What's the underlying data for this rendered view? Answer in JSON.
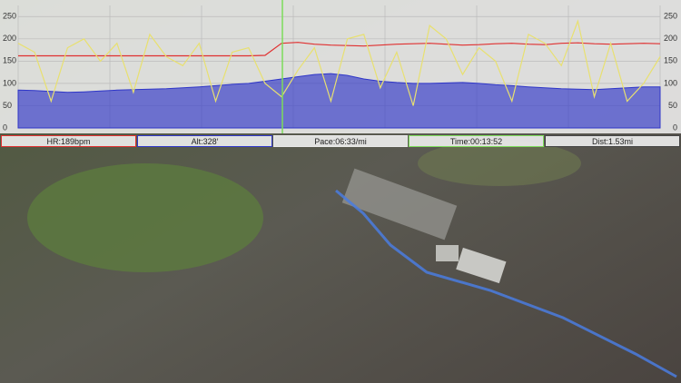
{
  "chart_data": {
    "type": "line",
    "series": [
      {
        "name": "HR",
        "color": "#e03030",
        "values": [
          162,
          162,
          162,
          162,
          162,
          162,
          162,
          162,
          162,
          162,
          162,
          162,
          162,
          162,
          162,
          163,
          190,
          192,
          188,
          186,
          185,
          184,
          186,
          188,
          189,
          190,
          188,
          186,
          187,
          189,
          190,
          188,
          187,
          190,
          191,
          189,
          188,
          189,
          190,
          189
        ]
      },
      {
        "name": "Alt",
        "color": "#2f36c8",
        "area": true,
        "values": [
          85,
          84,
          82,
          80,
          81,
          83,
          85,
          86,
          87,
          88,
          90,
          92,
          95,
          98,
          100,
          105,
          110,
          115,
          120,
          122,
          118,
          110,
          105,
          102,
          100,
          100,
          101,
          102,
          100,
          97,
          95,
          92,
          90,
          88,
          87,
          86,
          88,
          90,
          92,
          92
        ]
      },
      {
        "name": "Pace",
        "color": "#e8e070",
        "values": [
          190,
          170,
          60,
          180,
          200,
          150,
          190,
          80,
          210,
          160,
          140,
          190,
          60,
          170,
          180,
          100,
          70,
          130,
          180,
          60,
          200,
          210,
          90,
          170,
          50,
          230,
          200,
          120,
          180,
          150,
          60,
          210,
          190,
          140,
          240,
          70,
          190,
          60,
          100,
          160
        ]
      }
    ],
    "ylim": [
      0,
      275
    ],
    "yticks": [
      0,
      50,
      100,
      150,
      200,
      250
    ],
    "grid": true
  },
  "readouts": [
    "HR:189bpm",
    "Alt:328′",
    "Pace:06:33/mi",
    "Time:00:13:52",
    "Dist:1.53mi"
  ]
}
